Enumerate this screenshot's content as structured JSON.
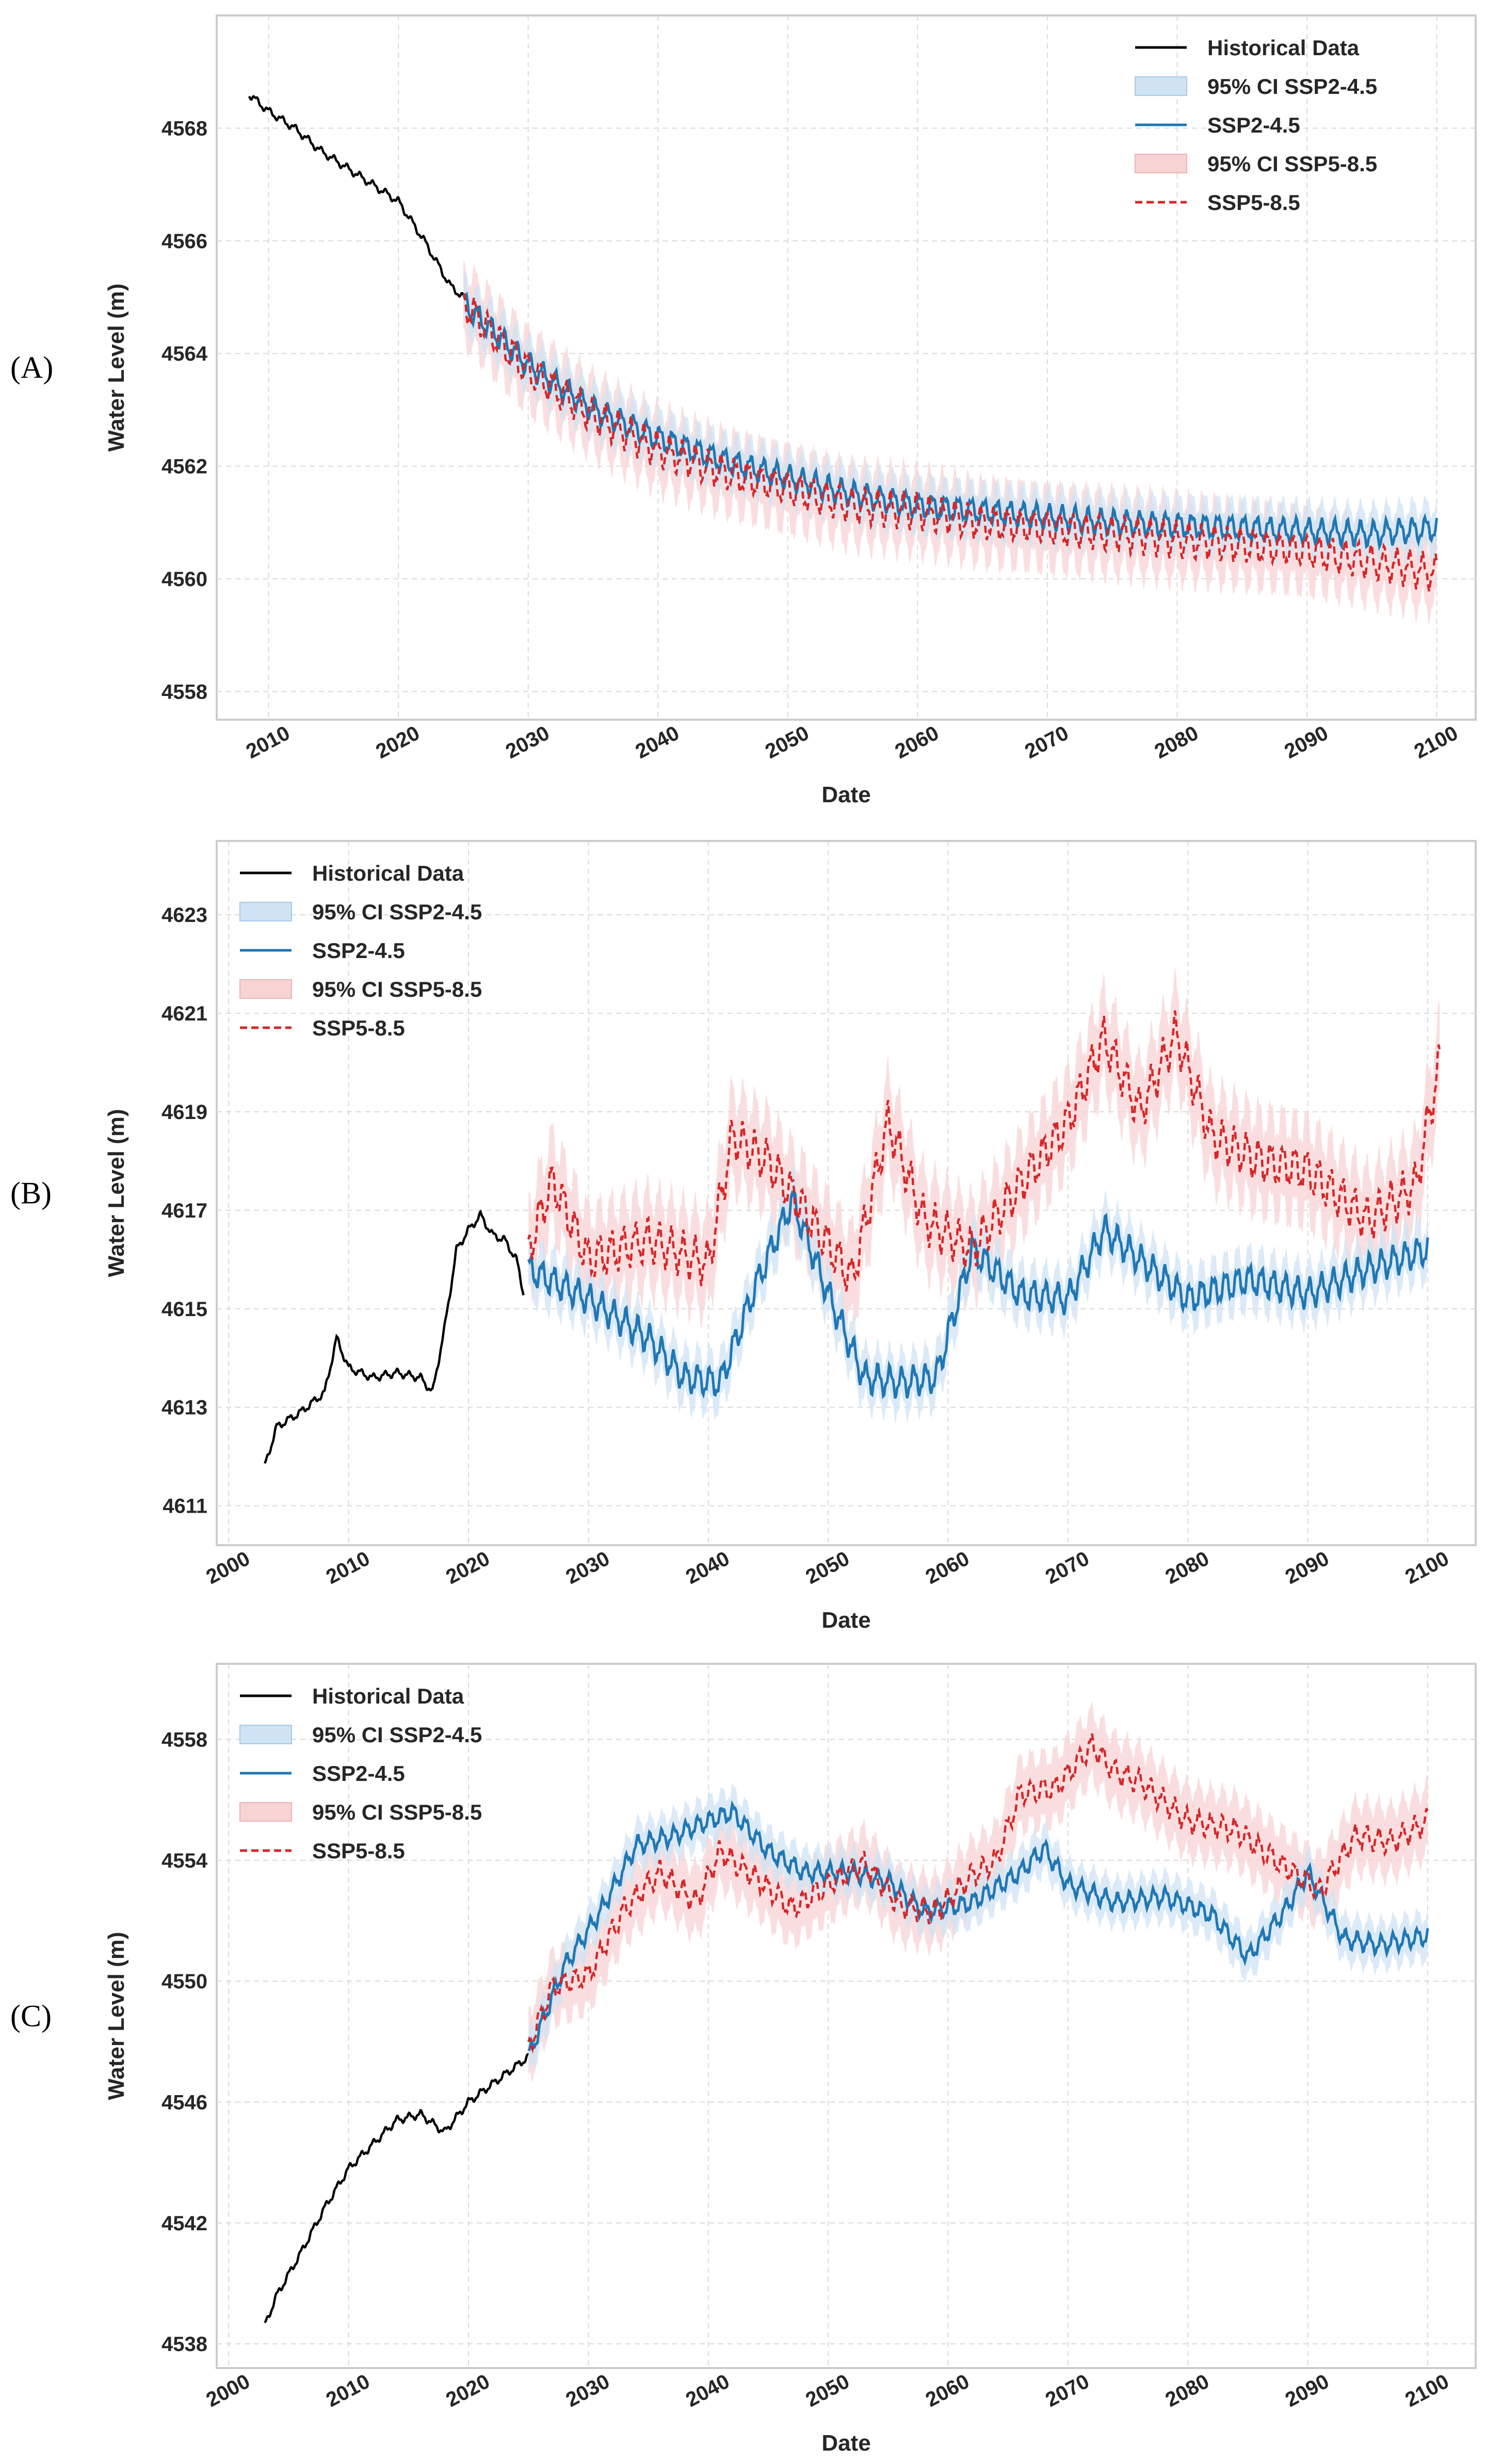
{
  "colors": {
    "historical": "#000000",
    "ssp245": "#1f77b4",
    "ssp245_ci": "#cfe3f3",
    "ssp585": "#d62728",
    "ssp585_ci": "#f8d3d4",
    "grid": "#d9d9d9",
    "frame": "#cccccc"
  },
  "chart_data": [
    {
      "panel_label": "(A)",
      "type": "line",
      "xlabel": "Date",
      "ylabel": "Water Level (m)",
      "xlim": [
        2006,
        2103
      ],
      "ylim": [
        4557.5,
        4570
      ],
      "xticks": [
        2010,
        2020,
        2030,
        2040,
        2050,
        2060,
        2070,
        2080,
        2090,
        2100
      ],
      "yticks": [
        4558,
        4560,
        4562,
        4564,
        4566,
        4568
      ],
      "grid": true,
      "legend_position": "top-right",
      "legend": [
        "Historical Data",
        "95% CI SSP2-4.5",
        "SSP2-4.5",
        "95% CI SSP5-8.5",
        "SSP5-8.5"
      ],
      "series": [
        {
          "name": "Historical Data",
          "x": [
            2008.5,
            2010,
            2012,
            2014,
            2016,
            2018,
            2020,
            2022,
            2024,
            2025
          ],
          "y": [
            4568.6,
            4568.3,
            4568.0,
            4567.6,
            4567.3,
            4567.0,
            4566.7,
            4566.0,
            4565.2,
            4565.0
          ]
        },
        {
          "name": "SSP2-4.5",
          "x": [
            2025,
            2030,
            2035,
            2040,
            2045,
            2050,
            2055,
            2060,
            2065,
            2070,
            2075,
            2080,
            2085,
            2090,
            2095,
            2100
          ],
          "y": [
            4564.9,
            4563.8,
            4563.0,
            4562.5,
            4562.1,
            4561.8,
            4561.5,
            4561.3,
            4561.2,
            4561.1,
            4561.0,
            4560.95,
            4560.9,
            4560.85,
            4560.8,
            4560.9
          ],
          "amplitude": 0.25
        },
        {
          "name": "SSP5-8.5",
          "x": [
            2025,
            2030,
            2035,
            2040,
            2045,
            2050,
            2055,
            2060,
            2065,
            2070,
            2075,
            2080,
            2085,
            2090,
            2095,
            2100
          ],
          "y": [
            4564.9,
            4563.7,
            4562.9,
            4562.3,
            4561.9,
            4561.6,
            4561.3,
            4561.2,
            4561.0,
            4560.9,
            4560.8,
            4560.7,
            4560.6,
            4560.5,
            4560.3,
            4560.1
          ],
          "amplitude": 0.35
        }
      ],
      "ci": [
        {
          "name": "95% CI SSP2-4.5",
          "halfwidth": 0.4
        },
        {
          "name": "95% CI SSP5-8.5",
          "halfwidth": 0.6
        }
      ]
    },
    {
      "panel_label": "(B)",
      "type": "line",
      "xlabel": "Date",
      "ylabel": "Water Level (m)",
      "xlim": [
        1999,
        2104
      ],
      "ylim": [
        4610.2,
        4624.5
      ],
      "xticks": [
        2000,
        2010,
        2020,
        2030,
        2040,
        2050,
        2060,
        2070,
        2080,
        2090,
        2100
      ],
      "yticks": [
        4611,
        4613,
        4615,
        4617,
        4619,
        4621,
        4623
      ],
      "grid": true,
      "legend_position": "top-left",
      "legend": [
        "Historical Data",
        "95% CI SSP2-4.5",
        "SSP2-4.5",
        "95% CI SSP5-8.5",
        "SSP5-8.5"
      ],
      "series": [
        {
          "name": "Historical Data",
          "x": [
            2003,
            2004,
            2006,
            2008,
            2009,
            2010,
            2012,
            2014,
            2016,
            2017,
            2018,
            2019,
            2020,
            2021,
            2022,
            2023,
            2024,
            2024.6
          ],
          "y": [
            4611.8,
            4612.6,
            4612.9,
            4613.3,
            4614.4,
            4613.8,
            4613.6,
            4613.7,
            4613.6,
            4613.3,
            4614.6,
            4616.2,
            4616.6,
            4616.9,
            4616.5,
            4616.4,
            4616.0,
            4615.3
          ]
        },
        {
          "name": "SSP2-4.5",
          "x": [
            2025,
            2030,
            2035,
            2038,
            2041,
            2044,
            2047,
            2050,
            2053,
            2056,
            2059,
            2062,
            2066,
            2070,
            2073,
            2076,
            2080,
            2085,
            2090,
            2095,
            2100
          ],
          "y": [
            4615.8,
            4615.2,
            4614.4,
            4613.6,
            4613.5,
            4615.5,
            4617.2,
            4615.3,
            4613.6,
            4613.5,
            4613.6,
            4616.2,
            4615.3,
            4615.2,
            4616.6,
            4616.0,
            4615.2,
            4615.6,
            4615.3,
            4615.8,
            4616.2
          ],
          "amplitude": 0.35
        },
        {
          "name": "SSP5-8.5",
          "x": [
            2025,
            2027,
            2030,
            2035,
            2040,
            2042,
            2045,
            2048,
            2052,
            2055,
            2058,
            2062,
            2066,
            2070,
            2073,
            2076,
            2079,
            2082,
            2086,
            2090,
            2095,
            2099,
            2101
          ],
          "y": [
            4616.2,
            4617.6,
            4616.0,
            4616.4,
            4615.9,
            4618.5,
            4618.0,
            4617.0,
            4615.6,
            4618.8,
            4616.8,
            4616.2,
            4617.5,
            4618.8,
            4620.5,
            4619.0,
            4620.6,
            4618.5,
            4618.0,
            4617.8,
            4616.8,
            4617.5,
            4620.0
          ],
          "amplitude": 0.5
        }
      ],
      "ci": [
        {
          "name": "95% CI SSP2-4.5",
          "halfwidth": 0.5
        },
        {
          "name": "95% CI SSP5-8.5",
          "halfwidth": 0.9
        }
      ]
    },
    {
      "panel_label": "(C)",
      "type": "line",
      "xlabel": "Date",
      "ylabel": "Water Level (m)",
      "xlim": [
        1999,
        2104
      ],
      "ylim": [
        4537.2,
        4560.5
      ],
      "xticks": [
        2000,
        2010,
        2020,
        2030,
        2040,
        2050,
        2060,
        2070,
        2080,
        2090,
        2100
      ],
      "yticks": [
        4538,
        4542,
        4546,
        4550,
        4554,
        4558
      ],
      "grid": true,
      "legend_position": "top-left",
      "legend": [
        "Historical Data",
        "95% CI SSP2-4.5",
        "SSP2-4.5",
        "95% CI SSP5-8.5",
        "SSP5-8.5"
      ],
      "series": [
        {
          "name": "Historical Data",
          "x": [
            2003,
            2004,
            2006,
            2008,
            2010,
            2012,
            2014,
            2016,
            2018,
            2020,
            2022,
            2024,
            2025
          ],
          "y": [
            4538.6,
            4539.6,
            4541.0,
            4542.5,
            4543.8,
            4544.6,
            4545.4,
            4545.6,
            4545.0,
            4546.0,
            4546.6,
            4547.2,
            4547.5
          ]
        },
        {
          "name": "SSP2-4.5",
          "x": [
            2025,
            2028,
            2031,
            2034,
            2037,
            2040,
            2042,
            2045,
            2048,
            2052,
            2055,
            2058,
            2062,
            2066,
            2068,
            2070,
            2074,
            2078,
            2082,
            2085,
            2088,
            2090,
            2093,
            2096,
            2100
          ],
          "y": [
            4547.5,
            4550.5,
            4552.3,
            4554.5,
            4554.8,
            4555.3,
            4555.6,
            4554.3,
            4553.6,
            4553.6,
            4553.3,
            4552.3,
            4552.6,
            4553.6,
            4554.4,
            4553.2,
            4552.6,
            4552.8,
            4552.2,
            4550.8,
            4552.3,
            4553.6,
            4551.4,
            4551.2,
            4551.5
          ],
          "amplitude": 0.35
        },
        {
          "name": "SSP5-8.5",
          "x": [
            2025,
            2027,
            2030,
            2033,
            2036,
            2039,
            2041,
            2044,
            2047,
            2050,
            2053,
            2056,
            2059,
            2062,
            2064,
            2066,
            2069,
            2072,
            2074,
            2076,
            2080,
            2084,
            2088,
            2091,
            2094,
            2097,
            2100
          ],
          "y": [
            4547.8,
            4549.8,
            4550.2,
            4552.4,
            4553.6,
            4552.6,
            4554.3,
            4553.4,
            4552.4,
            4553.2,
            4553.9,
            4552.5,
            4552.3,
            4553.5,
            4554.0,
            4556.2,
            4556.4,
            4557.8,
            4556.9,
            4556.6,
            4555.3,
            4555.0,
            4553.8,
            4553.0,
            4554.8,
            4554.6,
            4555.3
          ],
          "amplitude": 0.45
        }
      ],
      "ci": [
        {
          "name": "95% CI SSP2-4.5",
          "halfwidth": 0.7
        },
        {
          "name": "95% CI SSP5-8.5",
          "halfwidth": 1.1
        }
      ]
    }
  ]
}
